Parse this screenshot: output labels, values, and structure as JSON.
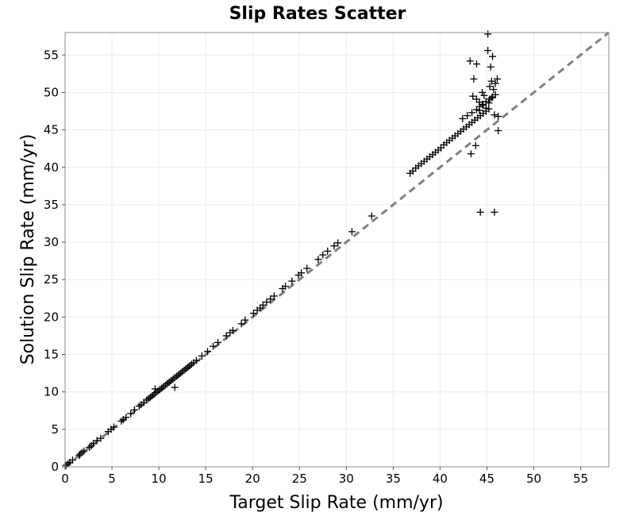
{
  "chart_data": {
    "type": "scatter",
    "title": "Slip Rates Scatter",
    "xlabel": "Target Slip Rate (mm/yr)",
    "ylabel": "Solution Slip Rate (mm/yr)",
    "xlim": [
      0,
      58
    ],
    "ylim": [
      0,
      58
    ],
    "xticks": [
      0,
      5,
      10,
      15,
      20,
      25,
      30,
      35,
      40,
      45,
      50,
      55
    ],
    "yticks": [
      0,
      5,
      10,
      15,
      20,
      25,
      30,
      35,
      40,
      45,
      50,
      55
    ],
    "grid": true,
    "marker": "plus",
    "marker_color": "#000000",
    "reference_line": {
      "from": [
        0,
        0
      ],
      "to": [
        58,
        58
      ],
      "style": "dashed",
      "color": "#808080"
    },
    "series": [
      {
        "x": [
          0.1,
          0.3,
          0.5,
          0.8,
          1.5,
          1.6,
          1.8,
          2.0,
          2.6,
          2.8,
          3.0,
          3.4,
          3.8,
          4.6,
          4.9,
          5.2,
          6.0,
          6.2,
          6.5,
          7.0,
          7.4,
          7.9,
          8.1,
          8.4,
          8.7,
          8.9,
          9.1,
          9.3,
          9.5,
          9.7,
          9.9,
          10.1,
          10.3,
          10.5,
          10.7,
          10.9,
          11.1,
          11.3,
          11.5,
          11.7,
          11.9,
          12.1,
          12.3,
          12.5,
          12.7,
          12.9,
          13.1,
          13.3,
          13.5,
          13.7,
          14.0,
          14.6,
          15.2,
          15.8,
          16.3,
          17.2,
          17.6,
          17.9,
          18.8,
          19.2,
          20.1,
          20.5,
          20.8,
          21.1,
          21.5,
          21.9,
          22.3,
          23.2,
          23.5,
          24.2,
          24.9,
          25.2,
          25.8,
          27.0,
          27.5,
          28.0,
          28.7,
          29.1,
          30.6,
          32.7,
          11.7,
          9.6,
          36.8,
          37.1,
          37.4,
          37.7,
          38.0,
          38.3,
          38.6,
          38.9,
          39.2,
          39.5,
          39.8,
          40.1,
          40.4,
          40.7,
          41.0,
          41.3,
          41.6,
          41.9,
          42.2,
          42.5,
          42.8,
          43.1,
          43.4,
          43.7,
          44.0,
          44.3,
          44.6,
          44.9,
          45.2,
          42.4,
          42.9,
          43.4,
          43.9,
          44.2,
          44.5,
          44.9,
          45.3,
          45.6,
          45.9,
          43.5,
          43.9,
          44.2,
          44.6,
          44.9,
          45.2,
          45.5,
          45.7,
          45.9,
          46.1,
          43.2,
          43.6,
          43.9,
          44.2,
          44.5,
          44.7,
          45.1,
          45.4,
          45.6,
          45.1,
          45.3,
          45.5,
          45.8,
          46.2,
          43.3,
          43.8,
          44.3,
          45.8,
          46.2
        ],
        "y": [
          0.2,
          0.4,
          0.6,
          0.9,
          1.5,
          1.7,
          1.9,
          2.1,
          2.6,
          2.8,
          3.1,
          3.5,
          3.8,
          4.7,
          5.0,
          5.3,
          6.1,
          6.3,
          6.6,
          7.1,
          7.6,
          8.1,
          8.3,
          8.6,
          8.9,
          9.1,
          9.3,
          9.5,
          9.7,
          9.9,
          10.1,
          10.3,
          10.5,
          10.7,
          10.9,
          11.1,
          11.3,
          11.5,
          11.7,
          11.9,
          12.1,
          12.3,
          12.5,
          12.7,
          12.9,
          13.1,
          13.3,
          13.5,
          13.7,
          13.9,
          14.2,
          14.8,
          15.4,
          16.1,
          16.6,
          17.5,
          17.9,
          18.2,
          19.1,
          19.6,
          20.5,
          20.9,
          21.2,
          21.6,
          22.0,
          22.4,
          22.8,
          23.8,
          24.1,
          24.8,
          25.6,
          25.9,
          26.5,
          27.7,
          28.3,
          28.8,
          29.5,
          29.9,
          31.4,
          33.5,
          10.6,
          10.4,
          39.2,
          39.5,
          39.9,
          40.2,
          40.5,
          40.8,
          41.1,
          41.4,
          41.7,
          42.0,
          42.3,
          42.6,
          43.0,
          43.3,
          43.6,
          43.9,
          44.2,
          44.5,
          44.8,
          45.1,
          45.4,
          45.7,
          46.0,
          46.3,
          46.6,
          46.9,
          47.2,
          47.5,
          47.8,
          46.5,
          46.9,
          47.3,
          47.7,
          48.1,
          48.4,
          48.8,
          49.1,
          49.4,
          49.7,
          49.5,
          49.1,
          48.7,
          48.3,
          47.9,
          48.6,
          49.3,
          50.4,
          51.2,
          51.8,
          54.2,
          51.8,
          53.8,
          47.6,
          50.0,
          49.6,
          55.6,
          53.4,
          54.8,
          57.8,
          50.8,
          51.5,
          47.0,
          46.8,
          41.8,
          42.9,
          34.0,
          34.0,
          44.9
        ]
      }
    ]
  }
}
